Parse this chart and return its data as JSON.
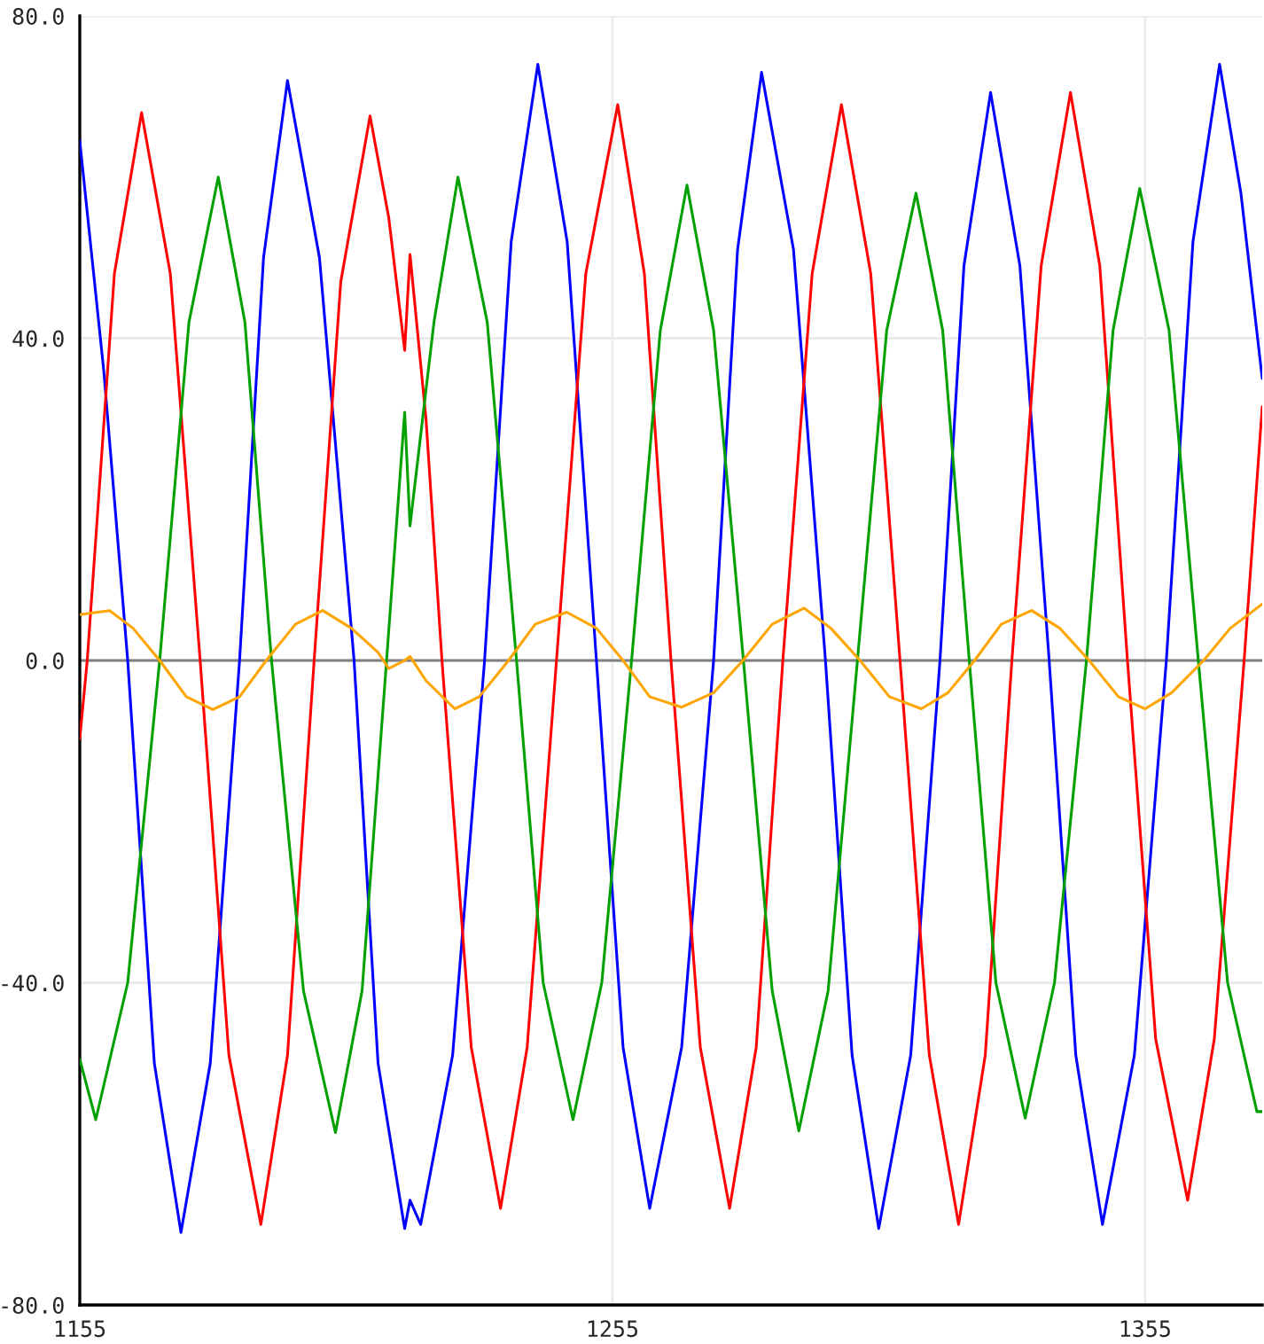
{
  "chart_data": {
    "type": "line",
    "xlim": [
      1155,
      1377
    ],
    "ylim": [
      -80,
      80
    ],
    "xticks": [
      1155,
      1255,
      1355
    ],
    "yticks": [
      {
        "value": -80,
        "label": "-80.0"
      },
      {
        "value": -40,
        "label": "-40.0"
      },
      {
        "value": 0,
        "label": "0.0"
      },
      {
        "value": 40,
        "label": "40.0"
      },
      {
        "value": 80,
        "label": "80.0"
      }
    ],
    "grid": true,
    "legend": false,
    "marker": "none",
    "line_style": "solid",
    "ref_lines": [
      {
        "axis": "y",
        "value": 0,
        "color": "#808080"
      }
    ],
    "series": [
      {
        "color": "#0000ff",
        "x": [
          1155,
          1159.5,
          1164,
          1169,
          1174,
          1179.5,
          1185,
          1189.5,
          1194,
          1200,
          1206.5,
          1211,
          1216,
          1217,
          1219,
          1225,
          1231,
          1236,
          1241,
          1246.5,
          1252,
          1257,
          1262,
          1268,
          1274,
          1278.5,
          1283,
          1289,
          1295,
          1300,
          1305,
          1311,
          1316.5,
          1321,
          1326,
          1331.5,
          1337,
          1342,
          1347,
          1353,
          1359,
          1364,
          1369,
          1373,
          1377
        ],
        "values": [
          64.5,
          36,
          0,
          -50,
          -71,
          -50,
          0,
          50,
          72,
          50,
          0,
          -50,
          -70.5,
          -67,
          -70,
          -49,
          0,
          52,
          74,
          52,
          0,
          -48,
          -68,
          -48,
          0,
          51,
          73,
          51,
          0,
          -49,
          -70.5,
          -49,
          0,
          49,
          70.5,
          49,
          0,
          -49,
          -70,
          -49,
          0,
          52,
          74,
          58,
          35
        ]
      },
      {
        "color": "#ff0000",
        "x": [
          1155,
          1156.4,
          1161.5,
          1166.6,
          1172,
          1177.6,
          1183,
          1189,
          1194,
          1199,
          1204,
          1209.5,
          1213,
          1216,
          1217,
          1220,
          1223,
          1228.5,
          1234,
          1239,
          1244.5,
          1250,
          1256,
          1261,
          1266,
          1271.5,
          1277,
          1282,
          1287,
          1292.5,
          1298,
          1303.5,
          1309,
          1314.5,
          1320,
          1325,
          1330,
          1335.5,
          1341,
          1346.5,
          1351.7,
          1357,
          1363,
          1368,
          1373.6,
          1377
        ],
        "values": [
          -9.7,
          0,
          48,
          68,
          48,
          0,
          -49,
          -70,
          -49,
          0,
          47,
          67.6,
          55,
          38.5,
          50.4,
          30,
          0,
          -48,
          -68,
          -48,
          0,
          48,
          69,
          48,
          0,
          -48,
          -68,
          -48,
          0,
          48,
          69,
          48,
          0,
          -49,
          -70,
          -49,
          0,
          49,
          70.5,
          49,
          0,
          -47,
          -67,
          -47,
          0,
          31.5
        ]
      },
      {
        "color": "#00a000",
        "x": [
          1155,
          1158,
          1164,
          1170,
          1175.5,
          1181,
          1186,
          1191,
          1197,
          1203,
          1208,
          1212.6,
          1216,
          1217,
          1221.5,
          1226,
          1231.5,
          1237,
          1242,
          1247.6,
          1253,
          1258.6,
          1264,
          1269,
          1274,
          1279.6,
          1285,
          1290,
          1295.5,
          1301,
          1306.5,
          1312,
          1317,
          1322,
          1327,
          1332.5,
          1338,
          1344,
          1349,
          1354,
          1359.5,
          1365,
          1370.5,
          1376,
          1377
        ],
        "values": [
          -49.5,
          -57,
          -40,
          0,
          42,
          60,
          42,
          0,
          -41,
          -58.6,
          -41,
          0,
          30.8,
          16.7,
          42,
          60,
          42,
          0,
          -40,
          -57,
          -40,
          0,
          41,
          59,
          41,
          0,
          -41,
          -58.4,
          -41,
          0,
          41,
          58,
          41,
          0,
          -40,
          -56.8,
          -40,
          0,
          41,
          58.6,
          41,
          0,
          -40,
          -56,
          -56
        ]
      },
      {
        "color": "#ffa500",
        "x": [
          1155,
          1160.6,
          1165,
          1170,
          1175,
          1180,
          1185,
          1190,
          1195.5,
          1200.6,
          1206,
          1211,
          1213,
          1216,
          1217,
          1220,
          1225.4,
          1230,
          1235.5,
          1240.5,
          1246.4,
          1252,
          1257,
          1262,
          1268,
          1274,
          1279.5,
          1285,
          1291,
          1296,
          1301.5,
          1307,
          1313,
          1318,
          1323,
          1328,
          1333.7,
          1339,
          1344.5,
          1350,
          1355,
          1360,
          1366,
          1371,
          1377
        ],
        "values": [
          5.7,
          6.2,
          4,
          0,
          -4.5,
          -6.1,
          -4.5,
          0,
          4.5,
          6.2,
          4,
          1,
          -1,
          0,
          0.5,
          -2.5,
          -6,
          -4.5,
          0,
          4.5,
          6,
          4,
          0,
          -4.5,
          -5.8,
          -4,
          0,
          4.5,
          6.5,
          4,
          0,
          -4.5,
          -6,
          -4,
          0,
          4.5,
          6.2,
          4,
          0,
          -4.5,
          -6,
          -4,
          0,
          4,
          7
        ]
      }
    ]
  }
}
